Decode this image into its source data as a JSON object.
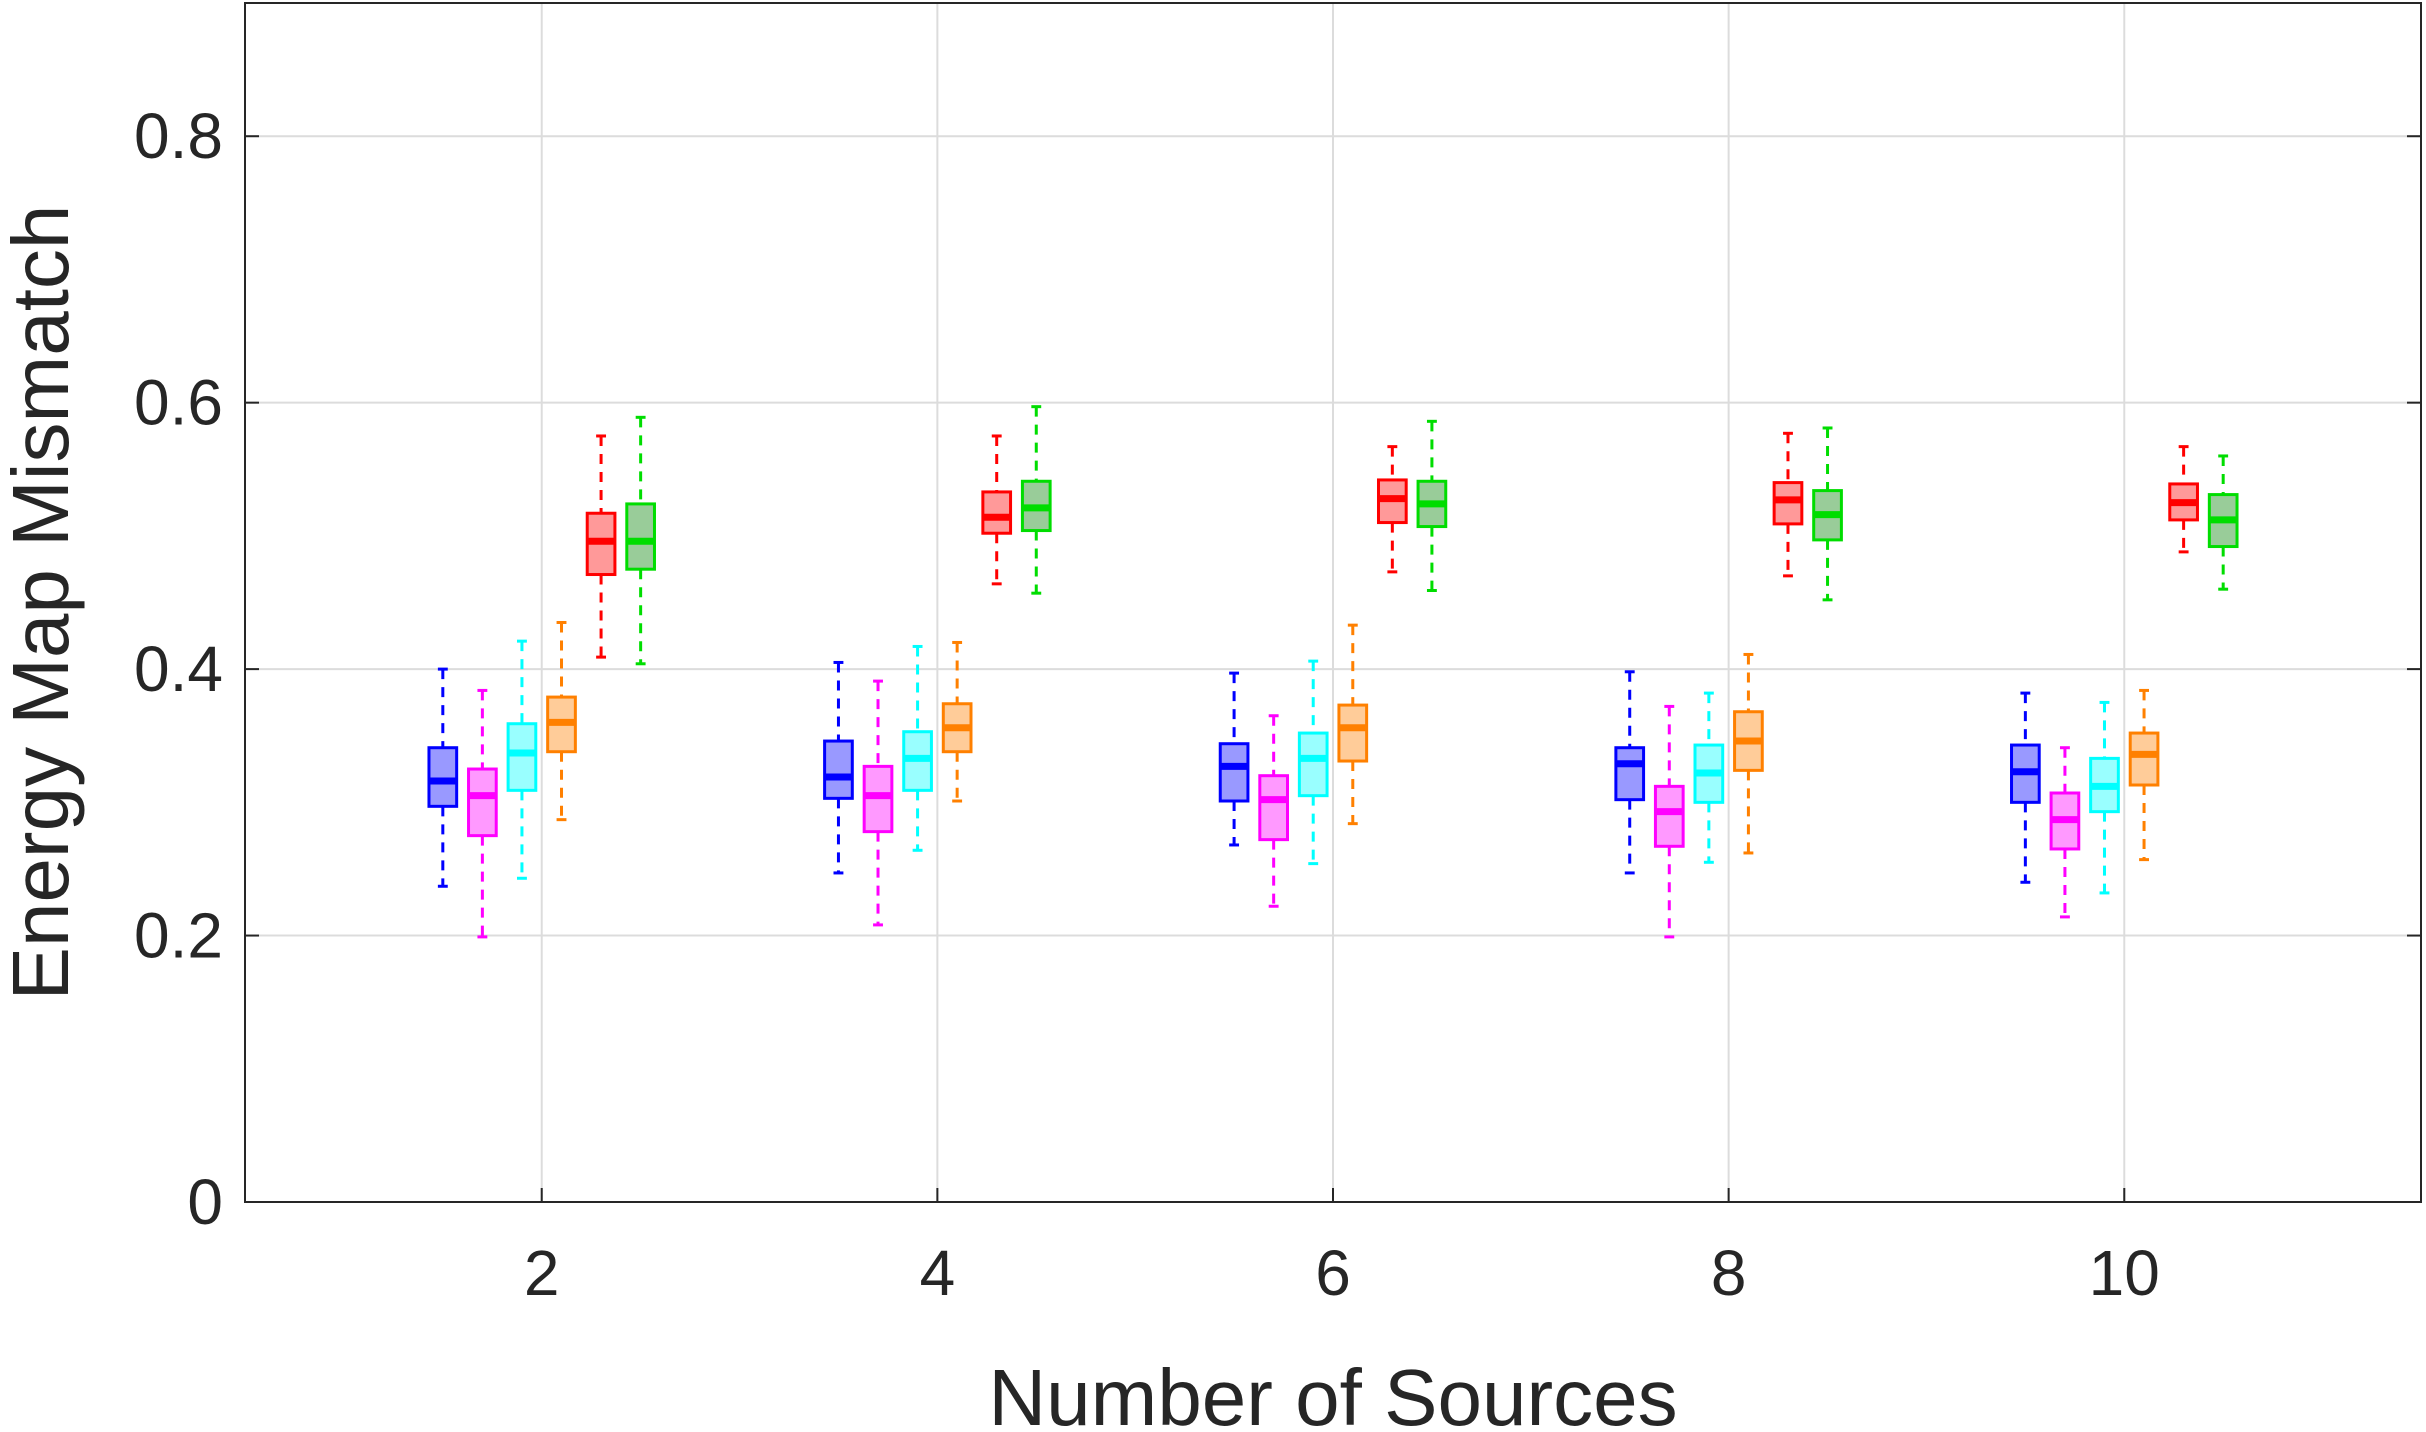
{
  "chart_data": {
    "type": "boxplot",
    "xlabel": "Number of Sources",
    "ylabel": "Energy Map Mismatch",
    "categories": [
      "2",
      "4",
      "6",
      "8",
      "10"
    ],
    "x": [
      2,
      4,
      6,
      8,
      10
    ],
    "xlim": [
      0.5,
      11.5
    ],
    "ylim": [
      0,
      0.9
    ],
    "yticks": [
      0,
      0.2,
      0.4,
      0.6,
      0.8
    ],
    "ytick_labels": [
      "0",
      "0.2",
      "0.4",
      "0.6",
      "0.8"
    ],
    "grid": true,
    "series": [
      {
        "name": "blue",
        "color": "#0000ff",
        "fill": "#9999ff",
        "stats": [
          [
            0.237,
            0.297,
            0.316,
            0.341,
            0.4
          ],
          [
            0.247,
            0.303,
            0.319,
            0.346,
            0.405
          ],
          [
            0.268,
            0.301,
            0.327,
            0.344,
            0.397
          ],
          [
            0.247,
            0.302,
            0.329,
            0.341,
            0.398
          ],
          [
            0.24,
            0.3,
            0.323,
            0.343,
            0.382
          ]
        ]
      },
      {
        "name": "magenta",
        "color": "#ff00ff",
        "fill": "#ff99ff",
        "stats": [
          [
            0.199,
            0.275,
            0.305,
            0.325,
            0.384
          ],
          [
            0.208,
            0.278,
            0.305,
            0.327,
            0.391
          ],
          [
            0.222,
            0.272,
            0.302,
            0.32,
            0.365
          ],
          [
            0.199,
            0.267,
            0.293,
            0.312,
            0.372
          ],
          [
            0.214,
            0.265,
            0.287,
            0.307,
            0.341
          ]
        ]
      },
      {
        "name": "cyan",
        "color": "#00ffff",
        "fill": "#99ffff",
        "stats": [
          [
            0.243,
            0.309,
            0.337,
            0.359,
            0.421
          ],
          [
            0.264,
            0.309,
            0.333,
            0.353,
            0.417
          ],
          [
            0.254,
            0.305,
            0.333,
            0.352,
            0.406
          ],
          [
            0.255,
            0.3,
            0.322,
            0.343,
            0.382
          ],
          [
            0.232,
            0.293,
            0.312,
            0.333,
            0.375
          ]
        ]
      },
      {
        "name": "orange",
        "color": "#ff8000",
        "fill": "#ffcc99",
        "stats": [
          [
            0.287,
            0.338,
            0.36,
            0.379,
            0.435
          ],
          [
            0.301,
            0.338,
            0.356,
            0.374,
            0.42
          ],
          [
            0.284,
            0.331,
            0.356,
            0.373,
            0.433
          ],
          [
            0.262,
            0.324,
            0.346,
            0.368,
            0.411
          ],
          [
            0.257,
            0.313,
            0.336,
            0.352,
            0.384
          ]
        ]
      },
      {
        "name": "red",
        "color": "#ff0000",
        "fill": "#ff9999",
        "stats": [
          [
            0.409,
            0.471,
            0.496,
            0.517,
            0.575
          ],
          [
            0.464,
            0.502,
            0.514,
            0.533,
            0.575
          ],
          [
            0.473,
            0.51,
            0.528,
            0.542,
            0.567
          ],
          [
            0.47,
            0.509,
            0.527,
            0.54,
            0.577
          ],
          [
            0.488,
            0.512,
            0.525,
            0.539,
            0.567
          ]
        ]
      },
      {
        "name": "green",
        "color": "#00dd00",
        "fill": "#99cc99",
        "stats": [
          [
            0.404,
            0.475,
            0.496,
            0.524,
            0.589
          ],
          [
            0.457,
            0.504,
            0.521,
            0.541,
            0.597
          ],
          [
            0.459,
            0.507,
            0.524,
            0.541,
            0.586
          ],
          [
            0.452,
            0.497,
            0.516,
            0.534,
            0.581
          ],
          [
            0.46,
            0.492,
            0.512,
            0.531,
            0.56
          ]
        ]
      }
    ],
    "stats_order": [
      "whisker_low",
      "q1",
      "median",
      "q3",
      "whisker_high"
    ]
  }
}
